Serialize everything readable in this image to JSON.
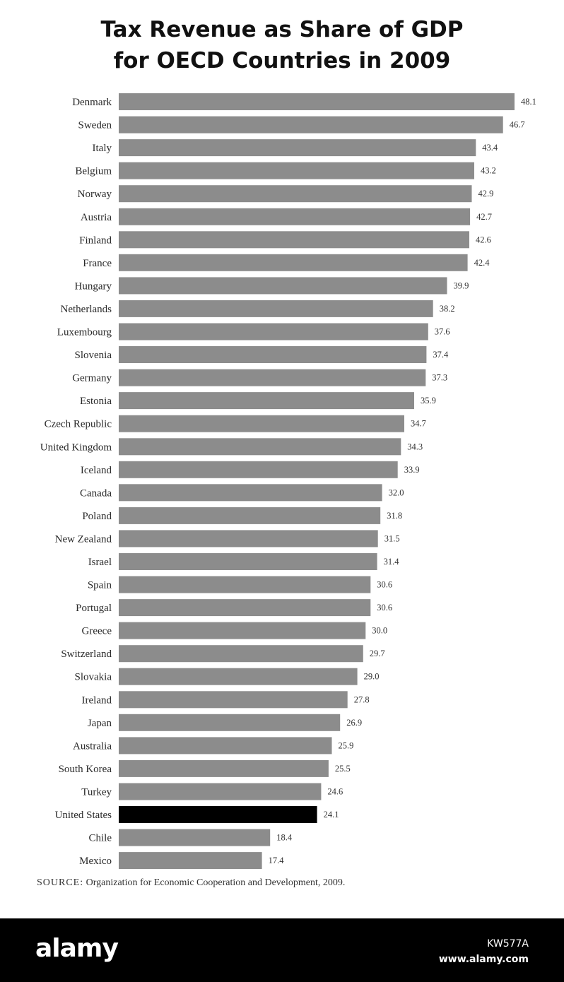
{
  "chart_data": {
    "type": "bar",
    "orientation": "horizontal",
    "title_line1": "Tax Revenue as Share of GDP",
    "title_line2": "for OECD Countries in 2009",
    "xlabel": "",
    "ylabel": "",
    "xlim": [
      0,
      48.1
    ],
    "grid": false,
    "legend": "none",
    "bar_color": "#8c8c8c",
    "highlight_color": "#000000",
    "highlight_category": "United States",
    "categories": [
      "Denmark",
      "Sweden",
      "Italy",
      "Belgium",
      "Norway",
      "Austria",
      "Finland",
      "France",
      "Hungary",
      "Netherlands",
      "Luxembourg",
      "Slovenia",
      "Germany",
      "Estonia",
      "Czech Republic",
      "United Kingdom",
      "Iceland",
      "Canada",
      "Poland",
      "New Zealand",
      "Israel",
      "Spain",
      "Portugal",
      "Greece",
      "Switzerland",
      "Slovakia",
      "Ireland",
      "Japan",
      "Australia",
      "South Korea",
      "Turkey",
      "United States",
      "Chile",
      "Mexico"
    ],
    "values": [
      48.1,
      46.7,
      43.4,
      43.2,
      42.9,
      42.7,
      42.6,
      42.4,
      39.9,
      38.2,
      37.6,
      37.4,
      37.3,
      35.9,
      34.7,
      34.3,
      33.9,
      32.0,
      31.8,
      31.5,
      31.4,
      30.6,
      30.6,
      30.0,
      29.7,
      29.0,
      27.8,
      26.9,
      25.9,
      25.5,
      24.6,
      24.1,
      18.4,
      17.4
    ],
    "value_labels": [
      "48.1",
      "46.7",
      "43.4",
      "43.2",
      "42.9",
      "42.7",
      "42.6",
      "42.4",
      "39.9",
      "38.2",
      "37.6",
      "37.4",
      "37.3",
      "35.9",
      "34.7",
      "34.3",
      "33.9",
      "32.0",
      "31.8",
      "31.5",
      "31.4",
      "30.6",
      "30.6",
      "30.0",
      "29.7",
      "29.0",
      "27.8",
      "26.9",
      "25.9",
      "25.5",
      "24.6",
      "24.1",
      "18.4",
      "17.4"
    ]
  },
  "source": {
    "label": "SOURCE:",
    "text": "Organization for Economic Cooperation and Development, 2009."
  },
  "footer": {
    "brand": "alamy",
    "image_id": "KW577A",
    "site": "www.alamy.com"
  }
}
